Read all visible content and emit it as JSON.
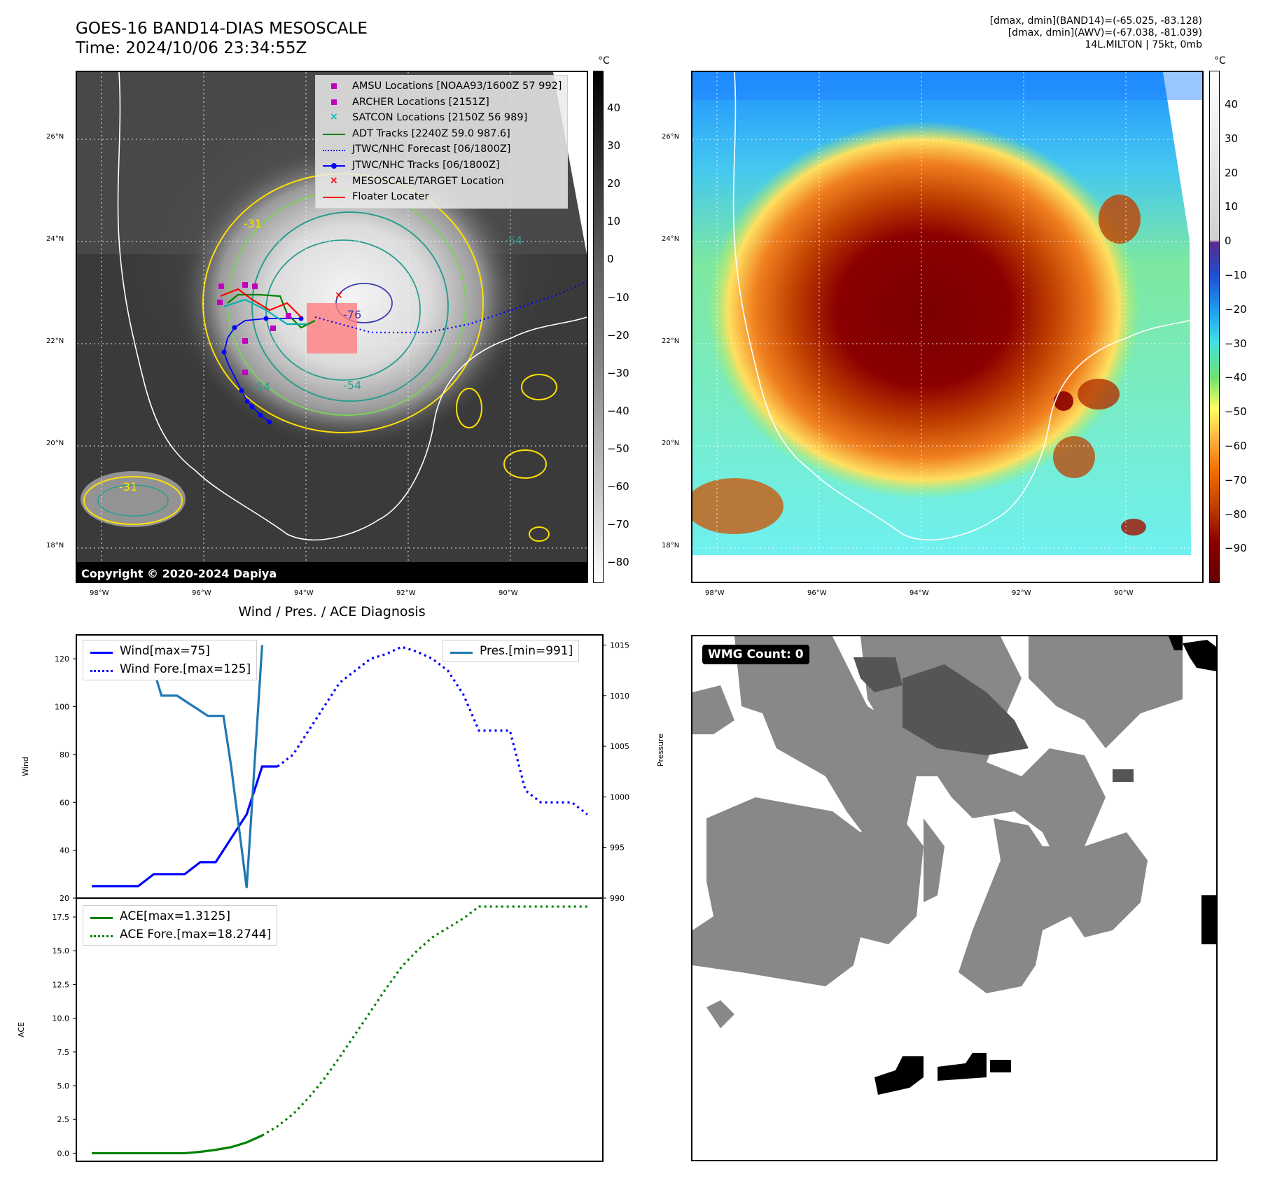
{
  "header": {
    "title_line1": "GOES-16 BAND14-DIAS MESOSCALE",
    "title_line2": "Time: 2024/10/06 23:34:55Z",
    "info_line1": "[dmax, dmin](BAND14)=(-65.025, -83.128)",
    "info_line2": "[dmax, dmin](AWV)=(-67.038, -81.039)",
    "info_line3": "14L.MILTON | 75kt, 0mb"
  },
  "map_axes": {
    "lat_labels": [
      "26°N",
      "24°N",
      "22°N",
      "20°N",
      "18°N"
    ],
    "lon_labels": [
      "98°W",
      "96°W",
      "94°W",
      "92°W",
      "90°W"
    ]
  },
  "ir_panel": {
    "copyright": "Copyright © 2020-2024 Dapiya",
    "colorbar_unit": "°C",
    "colorbar_ticks": [
      "40",
      "30",
      "20",
      "10",
      "0",
      "−10",
      "−20",
      "−30",
      "−40",
      "−50",
      "−60",
      "−70",
      "−80"
    ],
    "contour_labels": [
      "-31",
      "-54",
      "-64",
      "-76",
      "-31",
      "-54"
    ],
    "legend": [
      {
        "label": "AMSU Locations [NOAA93/1600Z 57 992]",
        "symbol": "square",
        "color": "#c000c0"
      },
      {
        "label": "ARCHER Locations [2151Z]",
        "symbol": "square",
        "color": "#c000c0"
      },
      {
        "label": "SATCON Locations [2150Z 56 989]",
        "symbol": "x",
        "color": "#00c0c0"
      },
      {
        "label": "ADT Tracks [2240Z 59.0 987.6]",
        "symbol": "line",
        "color": "#008000"
      },
      {
        "label": "JTWC/NHC Forecast [06/1800Z]",
        "symbol": "dotted",
        "color": "#0000ff"
      },
      {
        "label": "JTWC/NHC Tracks [06/1800Z]",
        "symbol": "line-dot",
        "color": "#0000ff"
      },
      {
        "label": "MESOSCALE/TARGET Location",
        "symbol": "x",
        "color": "#ff0000"
      },
      {
        "label": "Floater Locater",
        "symbol": "line",
        "color": "#ff0000"
      }
    ]
  },
  "color_panel": {
    "colorbar_unit": "°C",
    "colorbar_ticks": [
      "40",
      "30",
      "20",
      "10",
      "0",
      "−10",
      "−20",
      "−30",
      "−40",
      "−50",
      "−60",
      "−70",
      "−80",
      "−90"
    ]
  },
  "wmg_panel": {
    "badge": "WMG Count: 0"
  },
  "chart_data": [
    {
      "type": "line",
      "title": "Wind / Pres. / ACE Diagnosis",
      "ylabel": "Wind",
      "ylim": [
        20,
        130
      ],
      "yticks": [
        "20",
        "40",
        "60",
        "80",
        "100",
        "120"
      ],
      "x": [
        0,
        1,
        2,
        3,
        4,
        5,
        6,
        7,
        8,
        9,
        10,
        11,
        12,
        13,
        14,
        15,
        16,
        17,
        18,
        19,
        20,
        21,
        22,
        23,
        24,
        25,
        26,
        27,
        28,
        29,
        30,
        31,
        32
      ],
      "series": [
        {
          "name": "Wind[max=75]",
          "style": "solid",
          "color": "#0000ff",
          "x": [
            0,
            1,
            2,
            3,
            4,
            5,
            6,
            7,
            8,
            9,
            10,
            11,
            12
          ],
          "values": [
            25,
            25,
            25,
            25,
            30,
            30,
            30,
            35,
            35,
            45,
            55,
            75,
            75
          ]
        },
        {
          "name": "Wind Fore.[max=125]",
          "style": "dotted",
          "color": "#0000ff",
          "x": [
            12,
            13,
            14,
            15,
            16,
            17,
            18,
            19,
            20,
            21,
            22,
            23,
            24,
            25,
            26,
            27,
            28,
            29,
            30,
            31,
            32
          ],
          "values": [
            75,
            80,
            90,
            100,
            110,
            115,
            120,
            122,
            125,
            123,
            120,
            115,
            105,
            90,
            90,
            90,
            65,
            60,
            60,
            60,
            55
          ]
        }
      ]
    },
    {
      "type": "line",
      "ylabel": "Pressure",
      "ylim": [
        990,
        1016
      ],
      "yticks": [
        "990",
        "995",
        "1000",
        "1005",
        "1010",
        "1015"
      ],
      "series": [
        {
          "name": "Pres.[min=991]",
          "style": "solid",
          "color": "#1f77b4",
          "x": [
            1.5,
            2.5,
            3.5,
            4.5,
            5.5,
            6.5,
            7.5,
            8.5,
            9,
            9.5,
            10,
            10.5,
            11
          ],
          "values": [
            1015,
            1015,
            1015,
            1010,
            1010,
            1009,
            1008,
            1008,
            1003,
            997,
            991,
            1003,
            1015
          ]
        }
      ]
    },
    {
      "type": "line",
      "ylabel": "ACE",
      "ylim": [
        -0.6,
        18.9
      ],
      "yticks": [
        "0.0",
        "2.5",
        "5.0",
        "7.5",
        "10.0",
        "12.5",
        "15.0",
        "17.5"
      ],
      "series": [
        {
          "name": "ACE[max=1.3125]",
          "style": "solid",
          "color": "#008000",
          "x": [
            0,
            1,
            2,
            3,
            4,
            5,
            6,
            7,
            8,
            9,
            10,
            11
          ],
          "values": [
            0,
            0,
            0,
            0,
            0,
            0,
            0,
            0.1,
            0.25,
            0.45,
            0.8,
            1.3125
          ]
        },
        {
          "name": "ACE Fore.[max=18.2744]",
          "style": "dotted",
          "color": "#008000",
          "x": [
            11,
            12,
            13,
            14,
            15,
            16,
            17,
            18,
            19,
            20,
            21,
            22,
            23,
            24,
            25,
            26,
            27,
            28,
            29,
            30,
            31,
            32
          ],
          "values": [
            1.3125,
            2.0,
            2.9,
            4.1,
            5.5,
            7.1,
            8.8,
            10.5,
            12.2,
            13.8,
            15.0,
            16.0,
            16.7,
            17.4,
            18.2744,
            18.2744,
            18.2744,
            18.2744,
            18.2744,
            18.2744,
            18.2744,
            18.2744
          ]
        }
      ]
    }
  ]
}
